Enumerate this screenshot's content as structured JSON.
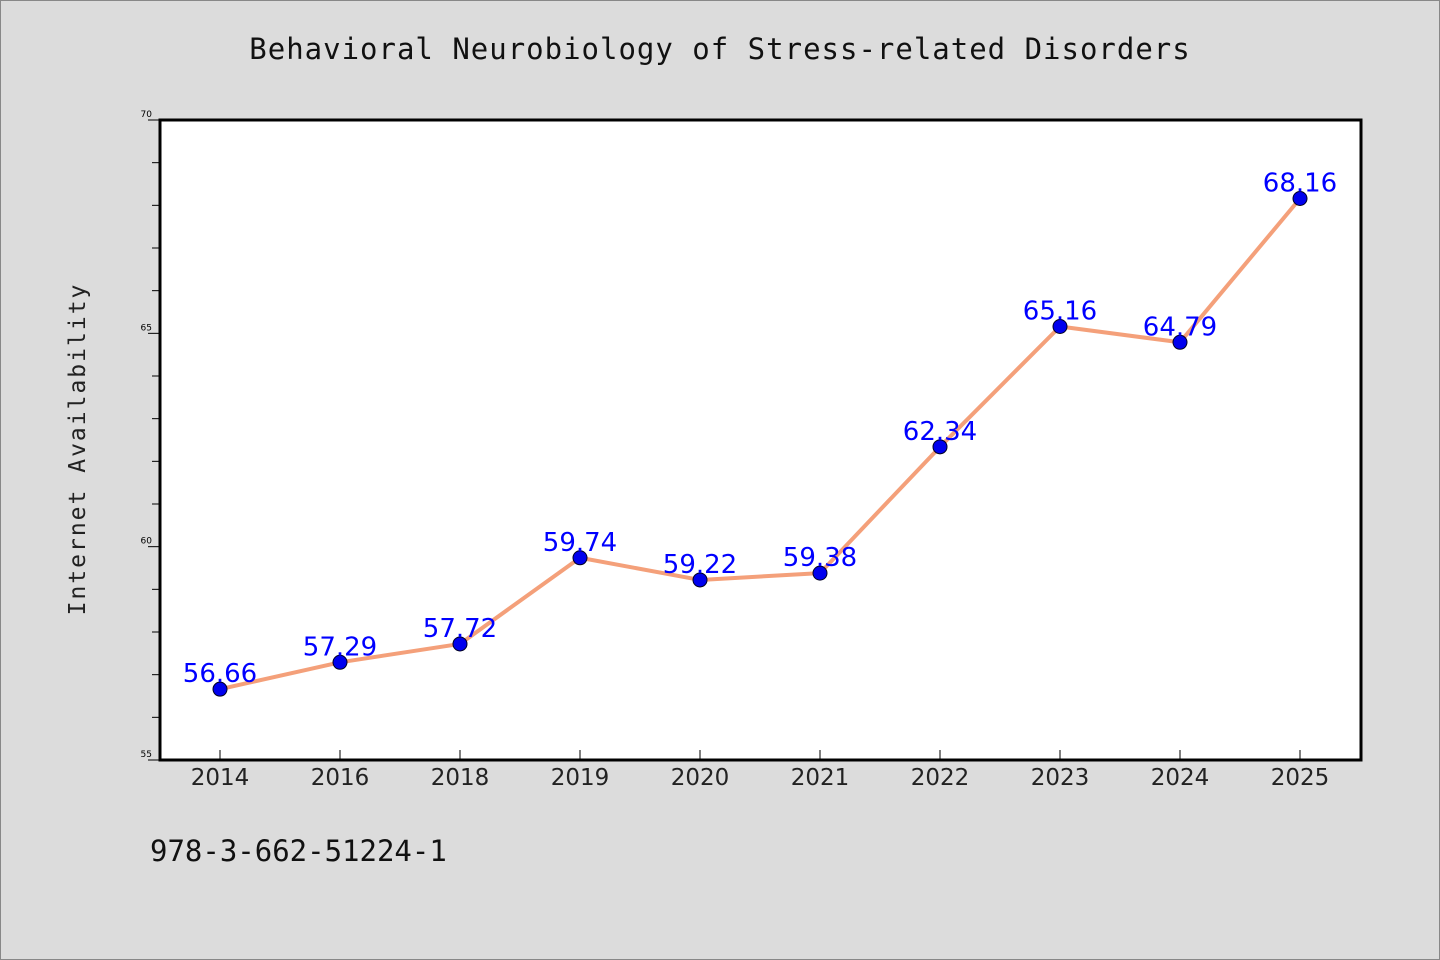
{
  "chart_data": {
    "type": "line",
    "title": "Behavioral Neurobiology of Stress-related Disorders",
    "xlabel": "",
    "ylabel": "Internet Availability",
    "categories": [
      "2014",
      "2016",
      "2018",
      "2019",
      "2020",
      "2021",
      "2022",
      "2023",
      "2024",
      "2025"
    ],
    "series": [
      {
        "values": [
          56.66,
          57.29,
          57.72,
          59.74,
          59.22,
          59.38,
          62.34,
          65.16,
          64.79,
          68.16
        ],
        "labels": [
          "56.66",
          "57.29",
          "57.72",
          "59.74",
          "59.22",
          "59.38",
          "62.34",
          "65.16",
          "64.79",
          "68.16"
        ]
      }
    ],
    "ylim": [
      55,
      70
    ],
    "y_ticks": [
      "55",
      "60",
      "65",
      "70"
    ],
    "grid": false,
    "line_color": "#f4a07a",
    "marker_color": "#0000ee",
    "label_color": "#0000ff",
    "background_color": "#ffffff"
  },
  "footer": {
    "code": "978-3-662-51224-1"
  }
}
